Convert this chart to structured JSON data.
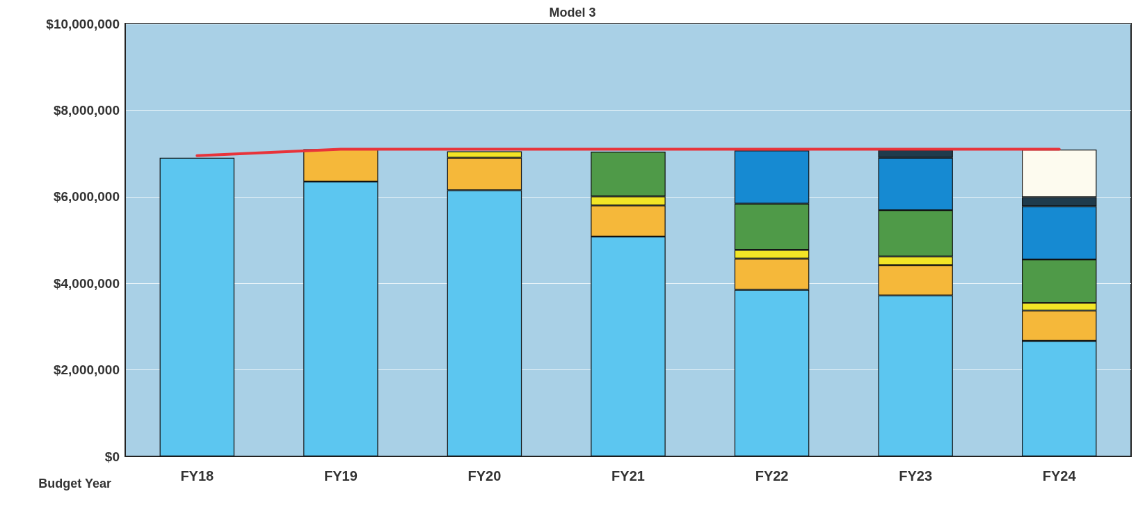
{
  "chart_data": {
    "type": "bar",
    "title": "Model 3",
    "xlabel": "Budget Year",
    "categories": [
      "FY18",
      "FY19",
      "FY20",
      "FY21",
      "FY22",
      "FY23",
      "FY24"
    ],
    "stacked": true,
    "series": [
      {
        "color": "#5cc6f0",
        "values": [
          6900000,
          6350000,
          6150000,
          5080000,
          3850000,
          3720000,
          2670000
        ]
      },
      {
        "color": "#f5b83a",
        "values": [
          null,
          750000,
          750000,
          720000,
          720000,
          700000,
          700000
        ]
      },
      {
        "color": "#f2e526",
        "values": [
          null,
          null,
          150000,
          210000,
          200000,
          200000,
          180000
        ]
      },
      {
        "color": "#4f9a48",
        "values": [
          null,
          null,
          null,
          1030000,
          1070000,
          1070000,
          1000000
        ]
      },
      {
        "color": "#168ad2",
        "values": [
          null,
          null,
          null,
          null,
          1230000,
          1210000,
          1230000
        ]
      },
      {
        "color": "#1f3b4c",
        "values": [
          null,
          null,
          null,
          null,
          null,
          180000,
          210000
        ]
      },
      {
        "color": "#fdfbef",
        "values": [
          null,
          null,
          null,
          null,
          null,
          null,
          1100000
        ]
      },
      {
        "type": "line",
        "color": "#e8333a",
        "values": [
          6950000,
          7100000,
          7100000,
          7100000,
          7100000,
          7100000,
          7100000
        ]
      }
    ],
    "ylim": [
      0,
      10000000
    ],
    "yticks": [
      {
        "value": 0,
        "label": "$0"
      },
      {
        "value": 2000000,
        "label": "$2,000,000"
      },
      {
        "value": 4000000,
        "label": "$4,000,000"
      },
      {
        "value": 6000000,
        "label": "$6,000,000"
      },
      {
        "value": 8000000,
        "label": "$8,000,000"
      },
      {
        "value": 10000000,
        "label": "$10,000,000"
      }
    ],
    "grid": "y",
    "marker": "none"
  }
}
